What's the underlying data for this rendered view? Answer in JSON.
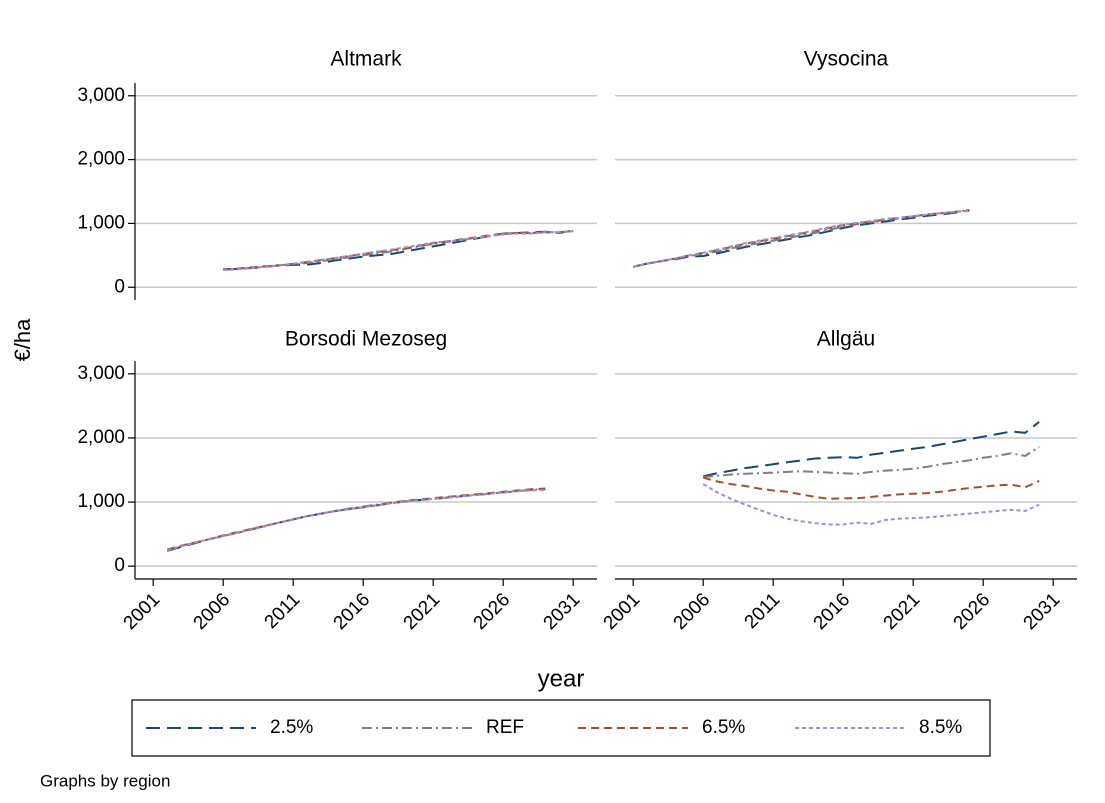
{
  "chart_data": [
    {
      "type": "line",
      "title": "Altmark",
      "x": [
        2006,
        2007,
        2008,
        2009,
        2010,
        2011,
        2012,
        2013,
        2014,
        2015,
        2016,
        2017,
        2018,
        2019,
        2020,
        2021,
        2022,
        2023,
        2024,
        2025,
        2026,
        2027,
        2028,
        2029,
        2030,
        2031
      ],
      "series": [
        {
          "values": [
            280,
            285,
            300,
            320,
            340,
            350,
            355,
            380,
            420,
            450,
            480,
            500,
            520,
            560,
            600,
            640,
            680,
            720,
            760,
            800,
            840,
            850,
            860,
            870,
            850,
            890
          ]
        },
        {
          "values": [
            280,
            290,
            305,
            325,
            345,
            360,
            380,
            410,
            440,
            470,
            500,
            530,
            560,
            600,
            640,
            680,
            710,
            740,
            770,
            800,
            830,
            850,
            850,
            860,
            860,
            880
          ]
        },
        {
          "values": [
            280,
            290,
            310,
            330,
            345,
            365,
            395,
            425,
            455,
            490,
            520,
            550,
            580,
            610,
            650,
            690,
            720,
            750,
            780,
            810,
            840,
            850,
            850,
            860,
            860,
            880
          ]
        },
        {
          "values": [
            270,
            280,
            300,
            320,
            340,
            370,
            400,
            430,
            460,
            490,
            525,
            560,
            590,
            625,
            660,
            700,
            720,
            740,
            770,
            800,
            830,
            840,
            840,
            860,
            860,
            880
          ]
        }
      ]
    },
    {
      "type": "line",
      "title": "Vysocina",
      "x": [
        2001,
        2002,
        2003,
        2004,
        2005,
        2006,
        2007,
        2008,
        2009,
        2010,
        2011,
        2012,
        2013,
        2014,
        2015,
        2016,
        2017,
        2018,
        2019,
        2020,
        2021,
        2022,
        2023,
        2024,
        2025
      ],
      "series": [
        {
          "values": [
            320,
            370,
            410,
            440,
            480,
            490,
            530,
            580,
            630,
            670,
            710,
            750,
            790,
            830,
            880,
            930,
            970,
            1000,
            1030,
            1060,
            1090,
            1120,
            1140,
            1170,
            1200
          ]
        },
        {
          "values": [
            320,
            370,
            410,
            450,
            490,
            520,
            560,
            610,
            650,
            690,
            730,
            770,
            810,
            850,
            900,
            950,
            990,
            1020,
            1050,
            1080,
            1110,
            1140,
            1160,
            1180,
            1210
          ]
        },
        {
          "values": [
            320,
            370,
            410,
            450,
            500,
            540,
            580,
            630,
            680,
            720,
            760,
            800,
            840,
            880,
            930,
            970,
            1000,
            1030,
            1060,
            1090,
            1110,
            1140,
            1160,
            1180,
            1210
          ]
        },
        {
          "values": [
            320,
            370,
            410,
            450,
            500,
            540,
            590,
            640,
            690,
            730,
            770,
            810,
            850,
            890,
            940,
            980,
            1010,
            1040,
            1070,
            1090,
            1110,
            1140,
            1160,
            1180,
            1200
          ]
        }
      ]
    },
    {
      "type": "line",
      "title": "Borsodi Mezoseg",
      "x": [
        2002,
        2003,
        2004,
        2005,
        2006,
        2007,
        2008,
        2009,
        2010,
        2011,
        2012,
        2013,
        2014,
        2015,
        2016,
        2017,
        2018,
        2019,
        2020,
        2021,
        2022,
        2023,
        2024,
        2025,
        2026,
        2027,
        2028,
        2029
      ],
      "series": [
        {
          "values": [
            240,
            300,
            360,
            420,
            470,
            520,
            570,
            630,
            680,
            730,
            780,
            820,
            860,
            890,
            920,
            950,
            980,
            1010,
            1030,
            1050,
            1070,
            1090,
            1110,
            1130,
            1150,
            1170,
            1190,
            1200
          ]
        },
        {
          "values": [
            250,
            310,
            370,
            420,
            470,
            520,
            580,
            630,
            680,
            730,
            780,
            820,
            860,
            900,
            930,
            960,
            990,
            1010,
            1030,
            1050,
            1070,
            1090,
            1110,
            1130,
            1150,
            1170,
            1190,
            1210
          ]
        },
        {
          "values": [
            260,
            320,
            370,
            420,
            480,
            530,
            580,
            630,
            680,
            730,
            780,
            820,
            860,
            890,
            920,
            950,
            990,
            1020,
            1040,
            1060,
            1080,
            1100,
            1120,
            1140,
            1160,
            1180,
            1200,
            1210
          ]
        },
        {
          "values": [
            250,
            310,
            370,
            420,
            470,
            520,
            570,
            620,
            680,
            730,
            780,
            820,
            860,
            890,
            920,
            950,
            980,
            1010,
            1030,
            1050,
            1070,
            1090,
            1110,
            1130,
            1150,
            1170,
            1180,
            1190
          ]
        }
      ]
    },
    {
      "type": "line",
      "title": "Allgäu",
      "x": [
        2006,
        2007,
        2008,
        2009,
        2010,
        2011,
        2012,
        2013,
        2014,
        2015,
        2016,
        2017,
        2018,
        2019,
        2020,
        2021,
        2022,
        2023,
        2024,
        2025,
        2026,
        2027,
        2028,
        2029,
        2030
      ],
      "series": [
        {
          "values": [
            1400,
            1450,
            1490,
            1530,
            1560,
            1590,
            1620,
            1650,
            1680,
            1690,
            1700,
            1690,
            1740,
            1770,
            1800,
            1830,
            1860,
            1900,
            1940,
            1980,
            2020,
            2060,
            2100,
            2080,
            2250
          ]
        },
        {
          "values": [
            1390,
            1410,
            1430,
            1440,
            1450,
            1460,
            1470,
            1480,
            1470,
            1460,
            1450,
            1440,
            1470,
            1490,
            1500,
            1520,
            1550,
            1590,
            1620,
            1650,
            1690,
            1720,
            1760,
            1720,
            1860
          ]
        },
        {
          "values": [
            1380,
            1320,
            1280,
            1250,
            1210,
            1180,
            1160,
            1120,
            1080,
            1050,
            1060,
            1060,
            1080,
            1100,
            1120,
            1130,
            1140,
            1160,
            1190,
            1220,
            1240,
            1260,
            1270,
            1230,
            1330
          ]
        },
        {
          "values": [
            1280,
            1150,
            1050,
            960,
            880,
            800,
            740,
            700,
            670,
            650,
            650,
            680,
            660,
            720,
            740,
            750,
            760,
            780,
            800,
            820,
            840,
            860,
            880,
            860,
            960
          ]
        }
      ]
    }
  ],
  "legend": {
    "series": [
      {
        "name": "2.5%",
        "color": "#1a476f",
        "dash": "14,7"
      },
      {
        "name": "REF",
        "color": "#7f7f7f",
        "dash": "10,4,2,4"
      },
      {
        "name": "6.5%",
        "color": "#a0522d",
        "dash": "8,5"
      },
      {
        "name": "8.5%",
        "color": "#9a8fd8",
        "dash": "4,3"
      }
    ]
  },
  "xlim": [
    1999.7,
    2032.7
  ],
  "xticks": [
    2001,
    2006,
    2011,
    2016,
    2021,
    2026,
    2031
  ],
  "ylim": [
    -200,
    3200
  ],
  "yticks": [
    0,
    {
      "value": 1000,
      "label": "1,000"
    },
    {
      "value": 2000,
      "label": "2,000"
    },
    {
      "value": 3000,
      "label": "3,000"
    }
  ],
  "grid": true,
  "x_label": "year",
  "y_label": "€/ha",
  "note": "Graphs by region"
}
